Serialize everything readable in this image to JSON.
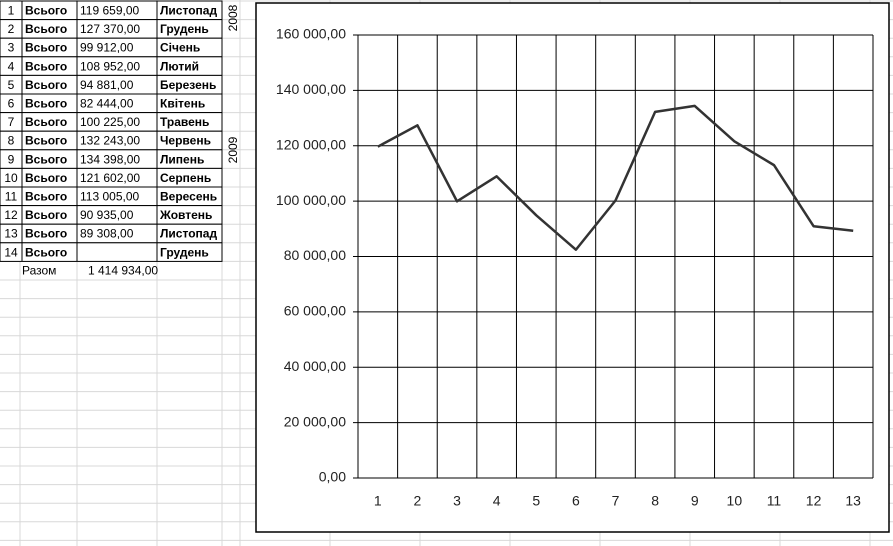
{
  "table": {
    "rows": [
      [
        "1",
        "Всього",
        "119 659,00",
        "Листопад"
      ],
      [
        "2",
        "Всього",
        "127 370,00",
        "Грудень"
      ],
      [
        "3",
        "Всього",
        "99 912,00",
        "Січень"
      ],
      [
        "4",
        "Всього",
        "108 952,00",
        "Лютий"
      ],
      [
        "5",
        "Всього",
        "94 881,00",
        "Березень"
      ],
      [
        "6",
        "Всього",
        "82 444,00",
        "Квітень"
      ],
      [
        "7",
        "Всього",
        "100 225,00",
        "Травень"
      ],
      [
        "8",
        "Всього",
        "132 243,00",
        "Червень"
      ],
      [
        "9",
        "Всього",
        "134 398,00",
        "Липень"
      ],
      [
        "10",
        "Всього",
        "121 602,00",
        "Серпень"
      ],
      [
        "11",
        "Всього",
        "113 005,00",
        "Вересень"
      ],
      [
        "12",
        "Всього",
        "90 935,00",
        "Жовтень"
      ],
      [
        "13",
        "Всього",
        "89 308,00",
        "Листопад"
      ],
      [
        "14",
        "Всього",
        null,
        "Грудень"
      ]
    ],
    "years": [
      "2008",
      "2009"
    ],
    "total": {
      "label": "Разом",
      "value": "1 414 934,00"
    }
  },
  "chart_data": {
    "type": "line",
    "color": "#333333",
    "categories": [
      1,
      2,
      3,
      4,
      5,
      6,
      7,
      8,
      9,
      10,
      11,
      12,
      13
    ],
    "values": [
      119659,
      127370,
      99912,
      108952,
      94881,
      82444,
      100225,
      132243,
      134398,
      121602,
      113005,
      90935,
      89308
    ],
    "ylim": [
      0,
      160000
    ],
    "yticks": [
      {
        "value": 0,
        "label": "0,00"
      },
      {
        "value": 20000,
        "label": "20 000,00"
      },
      {
        "value": 40000,
        "label": "40 000,00"
      },
      {
        "value": 60000,
        "label": "60 000,00"
      },
      {
        "value": 80000,
        "label": "80 000,00"
      },
      {
        "value": 100000,
        "label": "100 000,00"
      },
      {
        "value": 120000,
        "label": "120 000,00"
      },
      {
        "value": 140000,
        "label": "140 000,00"
      },
      {
        "value": 160000,
        "label": "160 000,00"
      }
    ],
    "grid": true
  }
}
